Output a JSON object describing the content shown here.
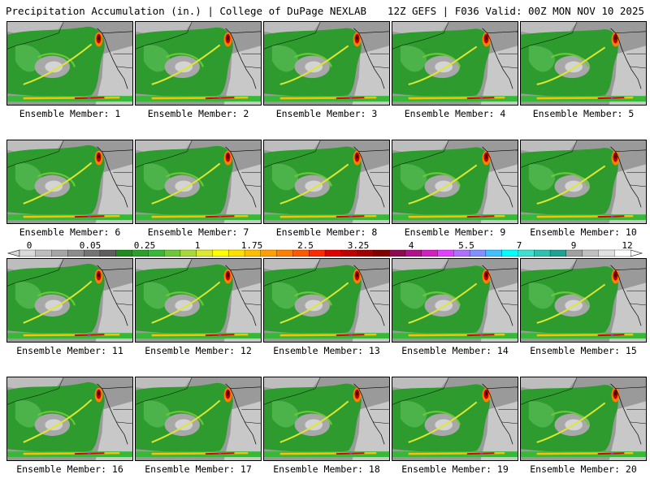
{
  "header": {
    "left": "Precipitation Accumulation (in.) | College of DuPage NEXLAB",
    "right": "12Z GEFS | F036 Valid: 00Z MON NOV 10 2025"
  },
  "label_prefix": "Ensemble Member: ",
  "members": [
    1,
    2,
    3,
    4,
    5,
    6,
    7,
    8,
    9,
    10,
    11,
    12,
    13,
    14,
    15,
    16,
    17,
    18,
    19,
    20
  ],
  "colorbar": {
    "tick_labels": [
      "0",
      "0.05",
      "0.25",
      "1",
      "1.75",
      "2.5",
      "3.25",
      "4",
      "5.5",
      "7",
      "9",
      "12"
    ],
    "colors": [
      "#d9d9d9",
      "#bdbdbd",
      "#a5a5a5",
      "#8c8c8c",
      "#747474",
      "#5e5e5e",
      "#1f8a1f",
      "#2aa02a",
      "#38b838",
      "#6cc83a",
      "#a8d83a",
      "#dfe82e",
      "#ffff00",
      "#ffdf00",
      "#ffbf00",
      "#ff9f00",
      "#ff7f00",
      "#ff5a00",
      "#ff2a00",
      "#e00000",
      "#c00000",
      "#a00000",
      "#800000",
      "#8b0a50",
      "#b0108a",
      "#d020c0",
      "#e040ff",
      "#b070ff",
      "#8090ff",
      "#40c0ff",
      "#00ffff",
      "#40e0d0",
      "#30c0b0",
      "#20a090",
      "#a0a0a0",
      "#c0c0c0",
      "#e0e0e0",
      "#ffffff"
    ]
  }
}
